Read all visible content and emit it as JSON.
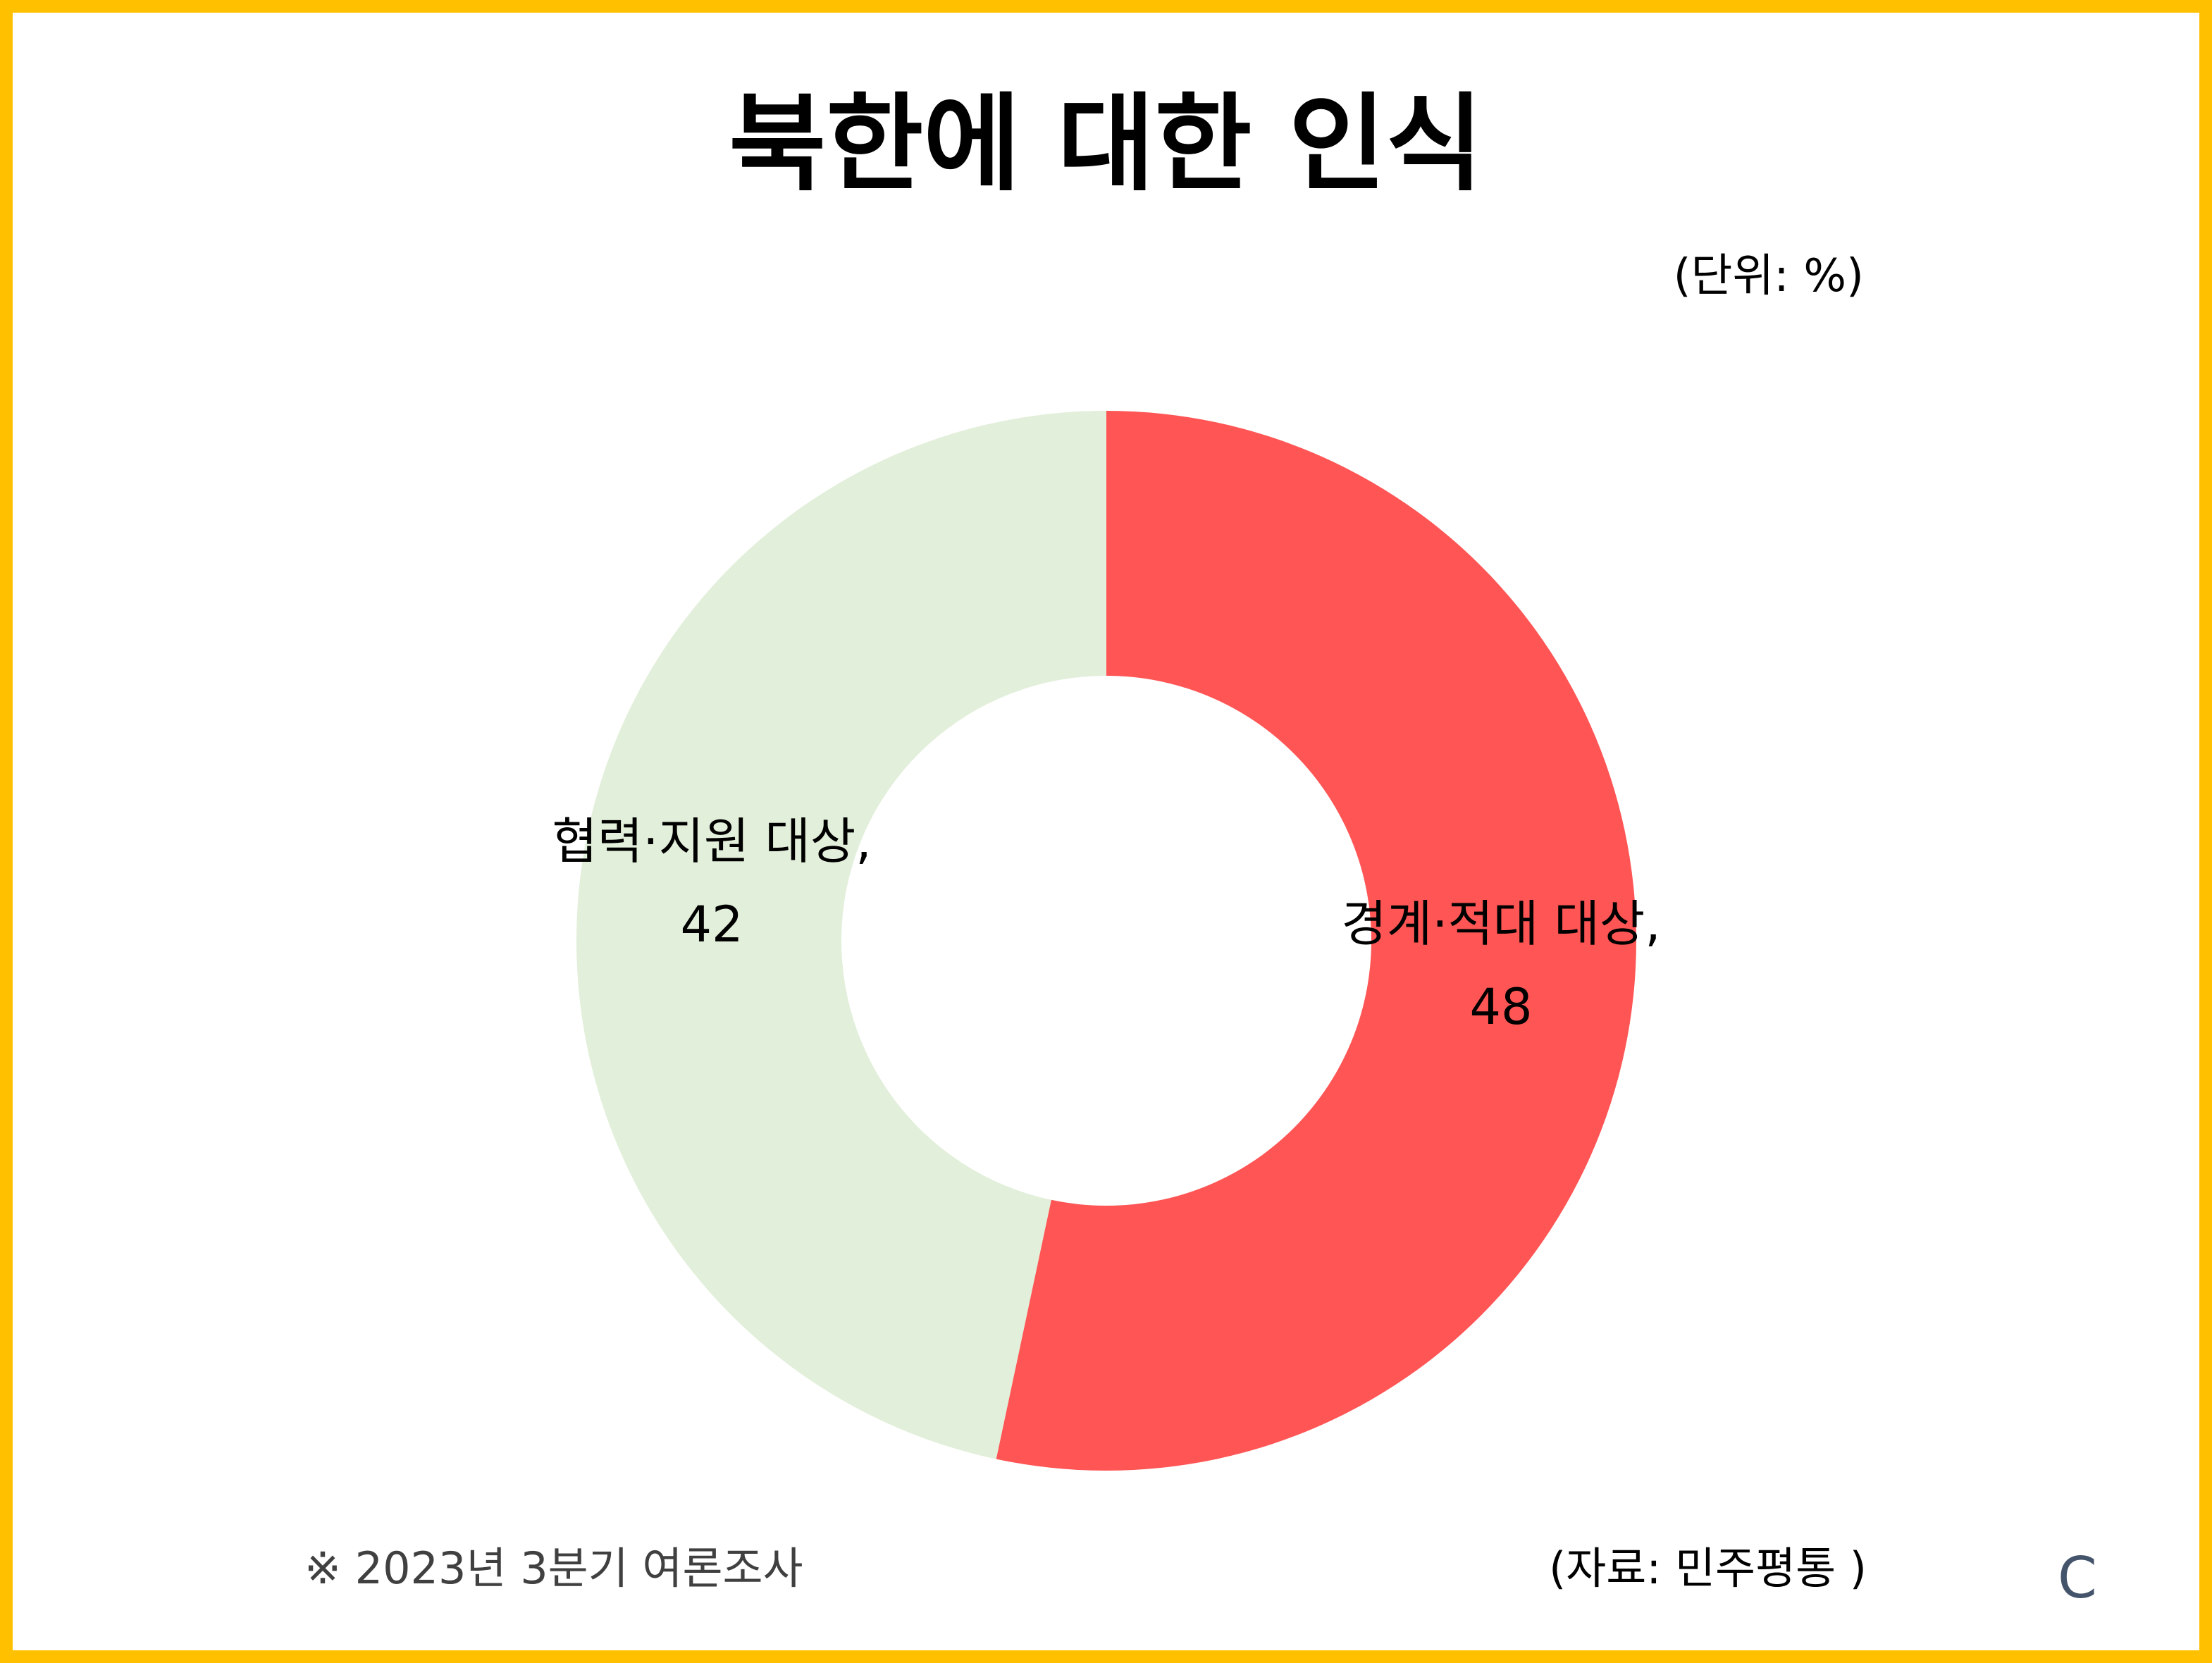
{
  "title": "북한에 대한 인식",
  "unit_note": "(단위: %)",
  "chart_data": {
    "type": "pie",
    "variant": "donut",
    "start": "12 o'clock, clockwise",
    "slices": [
      {
        "label": "경계·적대 대상,",
        "value": 48,
        "value_text": "48",
        "color": "#FF5555"
      },
      {
        "label": "협력·지원 대상,",
        "value": 42,
        "value_text": "42",
        "color": "#E2EFDA"
      }
    ]
  },
  "footnote": "※ 2023년 3분기 여론조사",
  "source": "(자료: 민주평통 )",
  "corner_mark": "C",
  "colors": {
    "frame": "#FFC000",
    "background": "#FFFFFF"
  }
}
